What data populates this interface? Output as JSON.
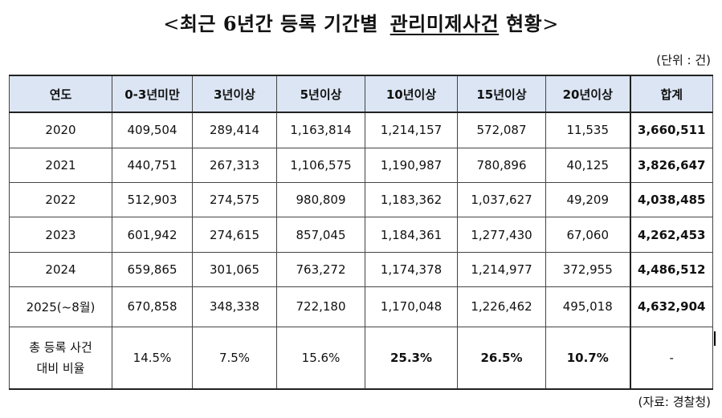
{
  "title": {
    "open": "<",
    "main": "최근 6년간 등록 기간별",
    "underlined": "관리미제사건",
    "rest": "현황",
    "close": ">"
  },
  "unit": "(단위 : 건)",
  "source": "(자료: 경찰청)",
  "table": {
    "headers": [
      "연도",
      "0-3년미만",
      "3년이상",
      "5년이상",
      "10년이상",
      "15년이상",
      "20년이상",
      "합계"
    ],
    "rows": [
      [
        "2020",
        "409,504",
        "289,414",
        "1,163,814",
        "1,214,157",
        "572,087",
        "11,535",
        "3,660,511"
      ],
      [
        "2021",
        "440,751",
        "267,313",
        "1,106,575",
        "1,190,987",
        "780,896",
        "40,125",
        "3,826,647"
      ],
      [
        "2022",
        "512,903",
        "274,575",
        "980,809",
        "1,183,362",
        "1,037,627",
        "49,209",
        "4,038,485"
      ],
      [
        "2023",
        "601,942",
        "274,615",
        "857,045",
        "1,184,361",
        "1,277,430",
        "67,060",
        "4,262,453"
      ],
      [
        "2024",
        "659,865",
        "301,065",
        "763,272",
        "1,174,378",
        "1,214,977",
        "372,955",
        "4,486,512"
      ],
      [
        "2025(~8월)",
        "670,858",
        "348,338",
        "722,180",
        "1,170,048",
        "1,226,462",
        "495,018",
        "4,632,904"
      ]
    ],
    "ratio": {
      "label_line1": "총 등록 사건",
      "label_line2": "대비 비율",
      "values": [
        "14.5%",
        "7.5%",
        "15.6%",
        "25.3%",
        "26.5%",
        "10.7%",
        "-"
      ]
    }
  }
}
